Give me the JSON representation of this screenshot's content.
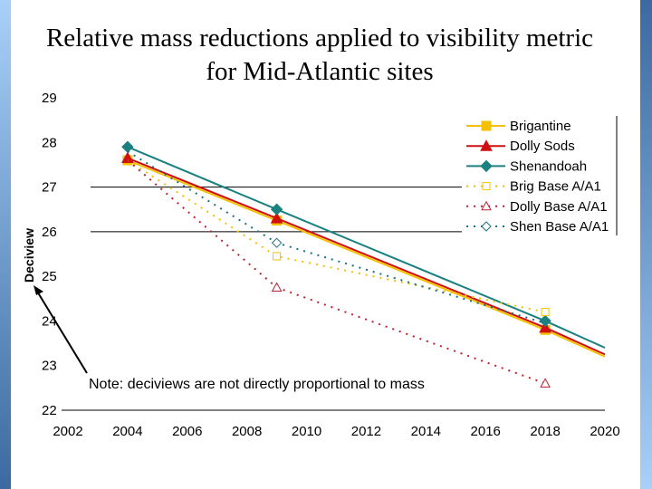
{
  "title": "Relative mass reductions applied to visibility metric for Mid-Atlantic sites",
  "chart_data": {
    "type": "line",
    "title": "Relative mass reductions applied to visibility metric for Mid-Atlantic sites",
    "xlabel": "",
    "ylabel": "Deciview",
    "xlim": [
      2002,
      2020
    ],
    "ylim": [
      22,
      29
    ],
    "xticks": [
      "2002",
      "2004",
      "2006",
      "2008",
      "2010",
      "2012",
      "2014",
      "2016",
      "2018",
      "2020"
    ],
    "yticks": [
      "22",
      "23",
      "24",
      "25",
      "26",
      "27",
      "28",
      "29"
    ],
    "gridlines_y": [
      26,
      27
    ],
    "legend_position": "top-right",
    "series": [
      {
        "name": "Brigantine",
        "color": "#f5c000",
        "style": "solid",
        "marker": "square",
        "x": [
          2004,
          2009,
          2018,
          2020
        ],
        "y": [
          27.6,
          26.25,
          23.8,
          23.2
        ],
        "marked": [
          true,
          true,
          true,
          false
        ]
      },
      {
        "name": "Dolly Sods",
        "color": "#d01010",
        "style": "solid",
        "marker": "triangle",
        "x": [
          2004,
          2009,
          2018,
          2020
        ],
        "y": [
          27.65,
          26.3,
          23.85,
          23.25
        ],
        "marked": [
          true,
          true,
          true,
          false
        ]
      },
      {
        "name": "Shenandoah",
        "color": "#1a8080",
        "style": "solid",
        "marker": "diamond",
        "x": [
          2004,
          2009,
          2018,
          2020
        ],
        "y": [
          27.9,
          26.5,
          24.0,
          23.4
        ],
        "marked": [
          true,
          true,
          true,
          false
        ]
      },
      {
        "name": "Brig Base A/A1",
        "color": "#f5c000",
        "style": "dotted",
        "marker": "square-open",
        "x": [
          2004,
          2009,
          2018
        ],
        "y": [
          27.6,
          25.45,
          24.2
        ],
        "marked": [
          false,
          true,
          true
        ]
      },
      {
        "name": "Dolly Base A/A1",
        "color": "#c02030",
        "style": "dotted",
        "marker": "triangle-open",
        "x": [
          2004,
          2009,
          2018
        ],
        "y": [
          27.6,
          24.75,
          22.6
        ],
        "marked": [
          false,
          true,
          true
        ]
      },
      {
        "name": "Shen Base A/A1",
        "color": "#1a7080",
        "style": "dotted",
        "marker": "diamond-open",
        "x": [
          2004,
          2009,
          2018
        ],
        "y": [
          27.8,
          25.75,
          23.95
        ],
        "marked": [
          false,
          true,
          false
        ]
      }
    ],
    "annotation": "Note: deciviews are not directly proportional to mass"
  }
}
